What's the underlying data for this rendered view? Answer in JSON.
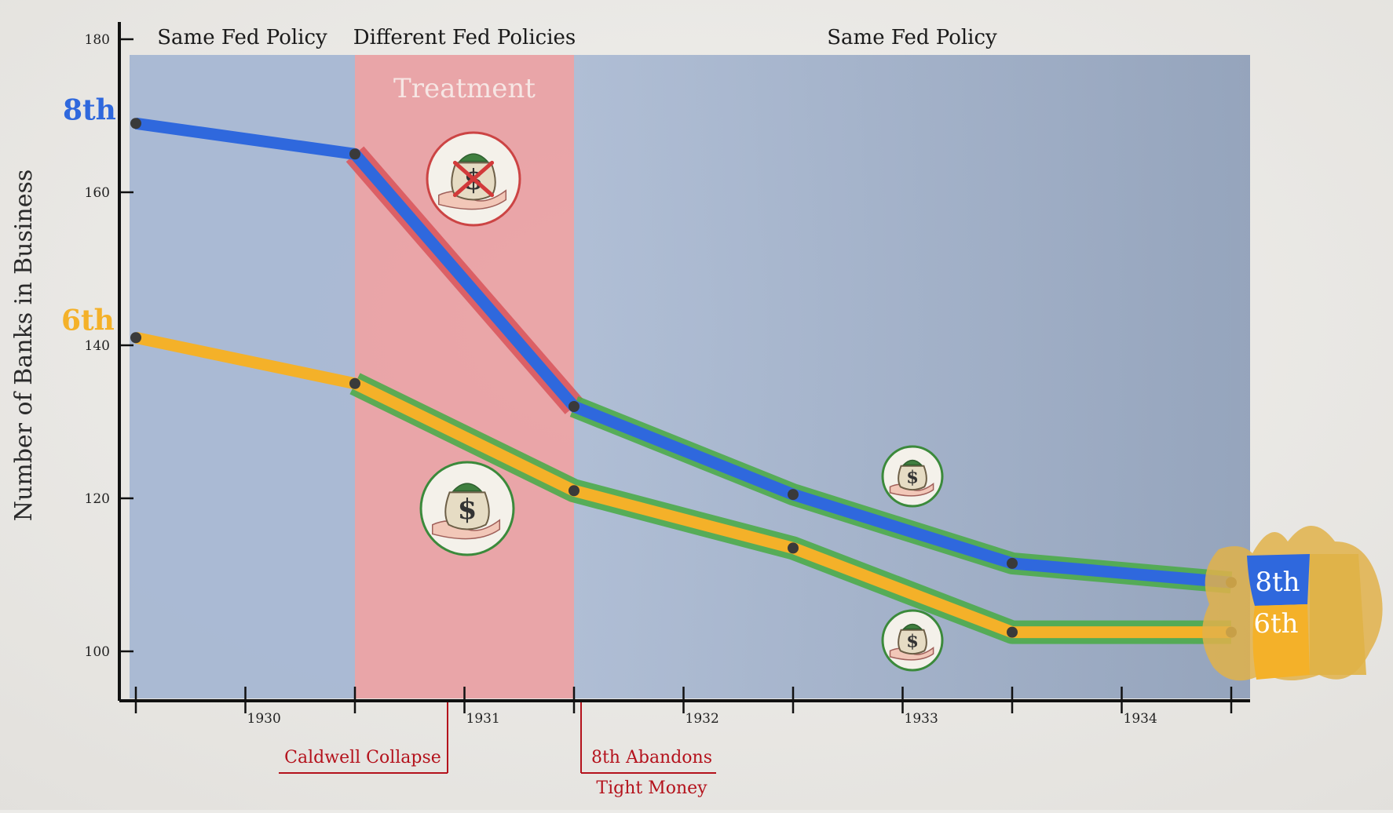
{
  "colors": {
    "eighth": "#2f68dd",
    "sixth": "#f4b129",
    "highlight_red": "#d9595e",
    "highlight_green": "#4dab4a",
    "blue_band": "#9eb1cf",
    "red_band": "#e9a1a4",
    "annotation_red": "#b4121c"
  },
  "icons": {
    "restricted_money": "money-bag-crossed-icon",
    "money_given": "money-bag-hand-icon",
    "map": "district-map-icon"
  },
  "chart_data": {
    "type": "line",
    "ylabel": "Number of Banks in Business",
    "xlabel": "",
    "ylim": [
      93,
      180
    ],
    "yticks": [
      100,
      120,
      140,
      160,
      180
    ],
    "xlim": [
      1929.1,
      1934.3
    ],
    "x_tick_labels": [
      "1930",
      "1931",
      "1932",
      "1933",
      "1934"
    ],
    "x": [
      1929.5,
      1930.5,
      1931.5,
      1932.5,
      1933.5,
      1934.5
    ],
    "series": [
      {
        "name": "8th",
        "values": [
          169,
          165,
          132,
          120.5,
          111.5,
          109
        ]
      },
      {
        "name": "6th",
        "values": [
          141,
          135,
          121,
          113.5,
          102.5,
          102.5
        ]
      }
    ],
    "regions": [
      {
        "label": "Same Fed Policy",
        "from": 1929.1,
        "to": 1930.5
      },
      {
        "label": "Different Fed Policies",
        "from": 1930.5,
        "to": 1931.5,
        "sublabel": "Treatment"
      },
      {
        "label": "Same Fed Policy",
        "from": 1931.5,
        "to": 1934.3
      }
    ],
    "annotations": [
      {
        "text": "Caldwell Collapse",
        "x": 1930.9
      },
      {
        "text": "8th Abandons",
        "x": 1931.5
      },
      {
        "text": "Tight Money",
        "x": 1931.5
      }
    ],
    "legend": "left"
  }
}
